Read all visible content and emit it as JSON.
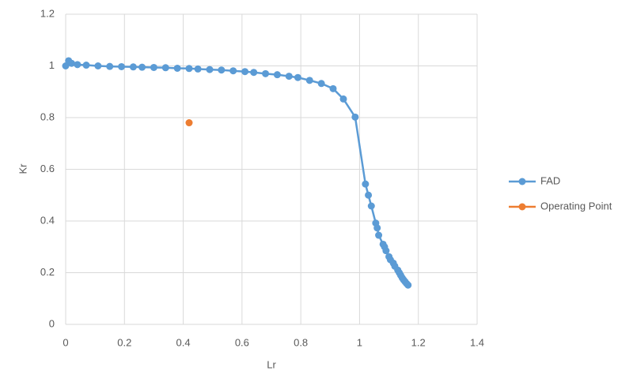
{
  "chart_data": {
    "type": "scatter",
    "x_label": "Lr",
    "y_label": "Kr",
    "xlim": [
      0,
      1.4
    ],
    "xticks": [
      0,
      0.2,
      0.4,
      0.6,
      0.8,
      1,
      1.2,
      1.4
    ],
    "ylim": [
      0,
      1.2
    ],
    "yticks": [
      0,
      0.2,
      0.4,
      0.6,
      0.8,
      1,
      1.2
    ],
    "grid": true,
    "legend": "right",
    "series": [
      {
        "name": "FAD",
        "color": "#5b9bd5",
        "lines": true,
        "x": [
          0,
          0.01,
          0.02,
          0.04,
          0.07,
          0.11,
          0.15,
          0.19,
          0.23,
          0.26,
          0.3,
          0.34,
          0.38,
          0.42,
          0.45,
          0.49,
          0.53,
          0.57,
          0.61,
          0.64,
          0.68,
          0.72,
          0.76,
          0.79,
          0.83,
          0.87,
          0.91,
          0.945,
          0.985,
          1.02,
          1.03,
          1.04,
          1.055,
          1.06,
          1.065,
          1.08,
          1.085,
          1.09,
          1.1,
          1.105,
          1.115,
          1.12,
          1.13,
          1.135,
          1.14,
          1.145,
          1.15,
          1.155,
          1.16,
          1.165
        ],
        "values": [
          1.0,
          1.02,
          1.01,
          1.005,
          1.003,
          1.0,
          0.998,
          0.997,
          0.996,
          0.995,
          0.994,
          0.993,
          0.991,
          0.99,
          0.988,
          0.986,
          0.984,
          0.981,
          0.978,
          0.975,
          0.97,
          0.966,
          0.96,
          0.955,
          0.944,
          0.932,
          0.912,
          0.872,
          0.802,
          0.543,
          0.5,
          0.458,
          0.392,
          0.373,
          0.345,
          0.31,
          0.3,
          0.285,
          0.262,
          0.25,
          0.237,
          0.225,
          0.21,
          0.2,
          0.19,
          0.18,
          0.172,
          0.165,
          0.158,
          0.152
        ]
      },
      {
        "name": "Operating Point",
        "color": "#ed7d31",
        "lines": false,
        "x": [
          0.42
        ],
        "values": [
          0.78
        ]
      }
    ]
  }
}
